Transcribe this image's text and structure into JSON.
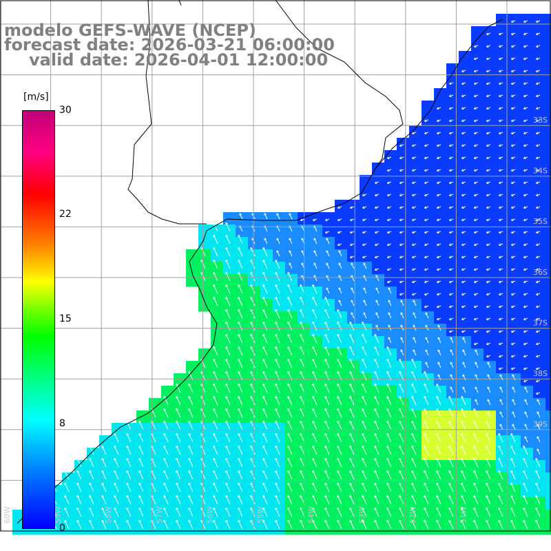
{
  "title": {
    "line1": "modelo GEFS-WAVE (NCEP)",
    "line2": "forecast date: 2026-03-21 06:00:00",
    "line3": "valid date: 2026-04-01 12:00:00"
  },
  "colorbar": {
    "unit": "[m/s]",
    "ticks": [
      "30",
      "22",
      "15",
      "8",
      "0"
    ],
    "tick_values": [
      30,
      22,
      15,
      8,
      0
    ],
    "colors": [
      "#0000ff",
      "#0080ff",
      "#00ffff",
      "#00ff80",
      "#00ff00",
      "#80ff00",
      "#ffff00",
      "#ff8000",
      "#ff0000",
      "#ff0080",
      "#c0007a"
    ]
  },
  "map": {
    "lat_labels": [
      "33S",
      "34S",
      "35S",
      "36S",
      "37S",
      "38S",
      "39S"
    ],
    "lon_labels": [
      "60W",
      "59W",
      "58W",
      "57W",
      "56W",
      "55W",
      "54W",
      "53W",
      "52W",
      "51W"
    ],
    "ocean_colors": {
      "calm": "#0a3cff",
      "low": "#1a8cff",
      "mid": "#00e6f0",
      "high": "#00f060",
      "peak": "#d8ff30"
    },
    "land_color": "#ffffff",
    "grid_color": "#a0a0a0",
    "arrow_color": "#ffffff"
  }
}
